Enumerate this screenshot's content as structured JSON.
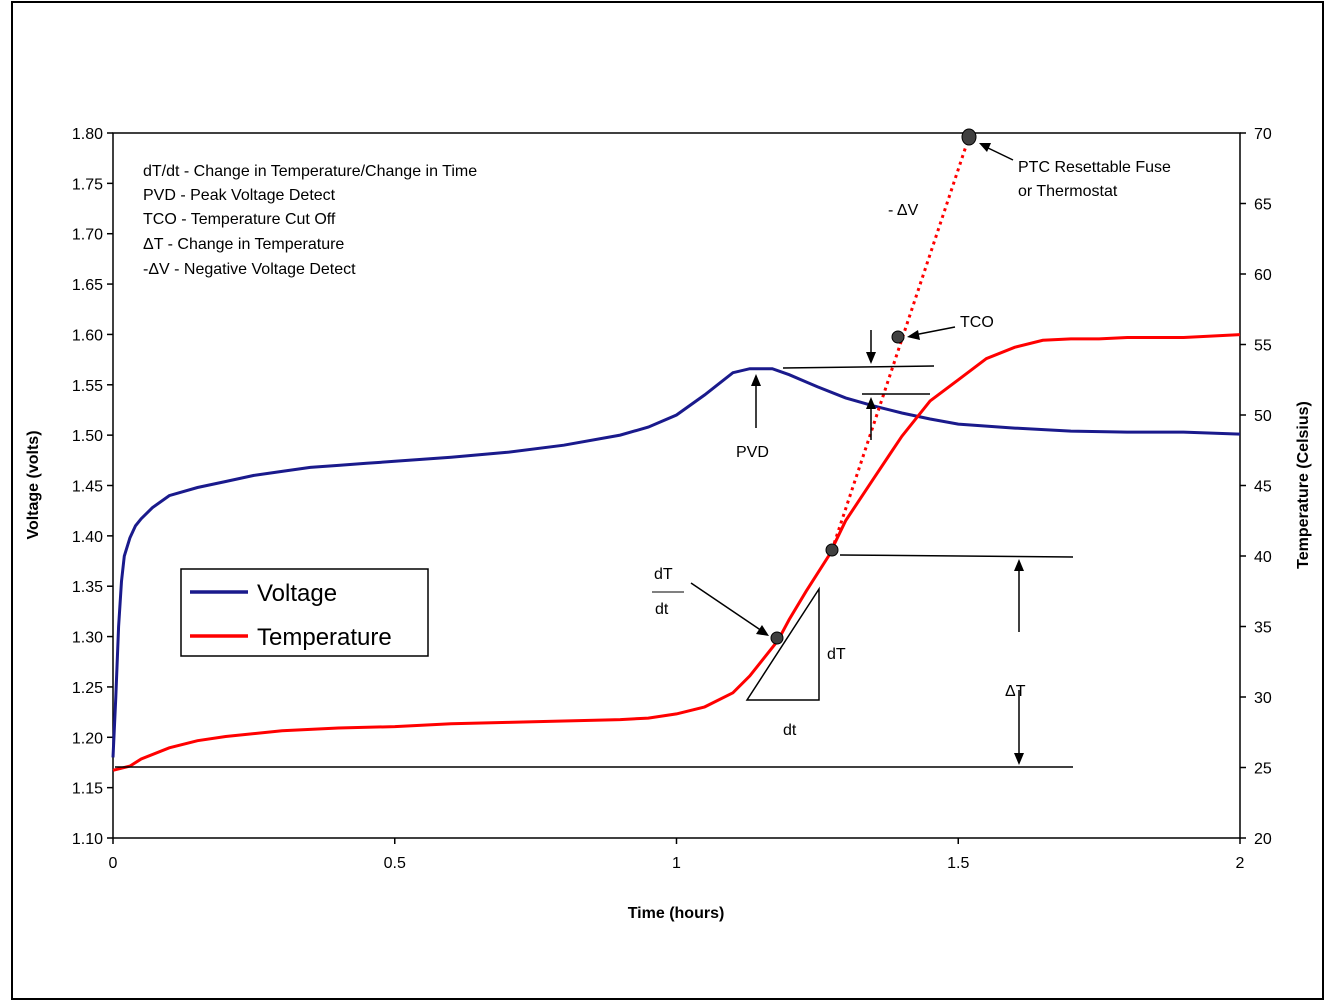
{
  "chart_data": {
    "type": "line",
    "xlabel": "Time (hours)",
    "ylabel_left": "Voltage (volts)",
    "ylabel_right": "Temperature (Celsius)",
    "x_range": [
      0,
      2
    ],
    "x_ticks": [
      0,
      0.5,
      1,
      1.5,
      2
    ],
    "x_tick_labels": [
      "0",
      "0.5",
      "1",
      "1.5",
      "2"
    ],
    "y_left_range": [
      1.1,
      1.8
    ],
    "y_left_ticks": [
      1.1,
      1.15,
      1.2,
      1.25,
      1.3,
      1.35,
      1.4,
      1.45,
      1.5,
      1.55,
      1.6,
      1.65,
      1.7,
      1.75,
      1.8
    ],
    "y_left_tick_labels": [
      "1.10",
      "1.15",
      "1.20",
      "1.25",
      "1.30",
      "1.35",
      "1.40",
      "1.45",
      "1.50",
      "1.55",
      "1.60",
      "1.65",
      "1.70",
      "1.75",
      "1.80"
    ],
    "y_right_range": [
      20,
      70
    ],
    "y_right_ticks": [
      20,
      25,
      30,
      35,
      40,
      45,
      50,
      55,
      60,
      65,
      70
    ],
    "y_right_tick_labels": [
      "20",
      "25",
      "30",
      "35",
      "40",
      "45",
      "50",
      "55",
      "60",
      "65",
      "70"
    ],
    "grid": false,
    "legend_position": "left-middle",
    "series": [
      {
        "name": "Voltage",
        "axis": "left",
        "color": "#1a1a8c",
        "x": [
          0,
          0.005,
          0.01,
          0.015,
          0.02,
          0.03,
          0.04,
          0.05,
          0.07,
          0.1,
          0.15,
          0.2,
          0.25,
          0.3,
          0.35,
          0.4,
          0.45,
          0.5,
          0.6,
          0.7,
          0.8,
          0.9,
          0.95,
          1.0,
          1.05,
          1.1,
          1.13,
          1.17,
          1.2,
          1.25,
          1.3,
          1.35,
          1.4,
          1.45,
          1.5,
          1.6,
          1.7,
          1.8,
          1.9,
          2.0
        ],
        "values": [
          1.18,
          1.24,
          1.31,
          1.355,
          1.38,
          1.398,
          1.41,
          1.417,
          1.428,
          1.44,
          1.448,
          1.454,
          1.46,
          1.464,
          1.468,
          1.47,
          1.472,
          1.474,
          1.478,
          1.483,
          1.49,
          1.5,
          1.508,
          1.52,
          1.54,
          1.562,
          1.566,
          1.566,
          1.56,
          1.548,
          1.537,
          1.529,
          1.522,
          1.516,
          1.511,
          1.507,
          1.504,
          1.503,
          1.503,
          1.501
        ]
      },
      {
        "name": "Temperature",
        "axis": "right",
        "color": "#ff0000",
        "x": [
          0,
          0.03,
          0.05,
          0.1,
          0.15,
          0.2,
          0.3,
          0.4,
          0.5,
          0.6,
          0.7,
          0.8,
          0.9,
          0.95,
          1.0,
          1.05,
          1.1,
          1.13,
          1.15,
          1.18,
          1.2,
          1.23,
          1.27,
          1.3,
          1.35,
          1.4,
          1.45,
          1.5,
          1.55,
          1.6,
          1.65,
          1.7,
          1.75,
          1.8,
          1.85,
          1.9,
          2.0
        ],
        "values": [
          24.8,
          25.1,
          25.6,
          26.4,
          26.9,
          27.2,
          27.6,
          27.8,
          27.9,
          28.1,
          28.2,
          28.3,
          28.4,
          28.5,
          28.8,
          29.3,
          30.3,
          31.5,
          32.5,
          34.0,
          35.5,
          37.5,
          40.0,
          42.5,
          45.5,
          48.5,
          51.0,
          52.5,
          54.0,
          54.8,
          55.3,
          55.4,
          55.4,
          55.5,
          55.5,
          55.5,
          55.7
        ]
      }
    ],
    "annotations": {
      "definitions": [
        "dT/dt - Change in Temperature/Change in Time",
        "PVD - Peak Voltage Detect",
        "TCO - Temperature Cut Off",
        "ΔT - Change in Temperature",
        "-ΔV - Negative Voltage Detect"
      ],
      "pvd_label": "PVD",
      "tco_label": "TCO",
      "neg_dv_label": "- ΔV",
      "ptc_label_line1": "PTC Resettable Fuse",
      "ptc_label_line2": "or Thermostat",
      "dtdt_num": "dT",
      "dtdt_den": "dt",
      "triangle_dt_vertical": "dT",
      "triangle_dt_horizontal": "dt",
      "delta_t_label": "ΔT"
    }
  }
}
